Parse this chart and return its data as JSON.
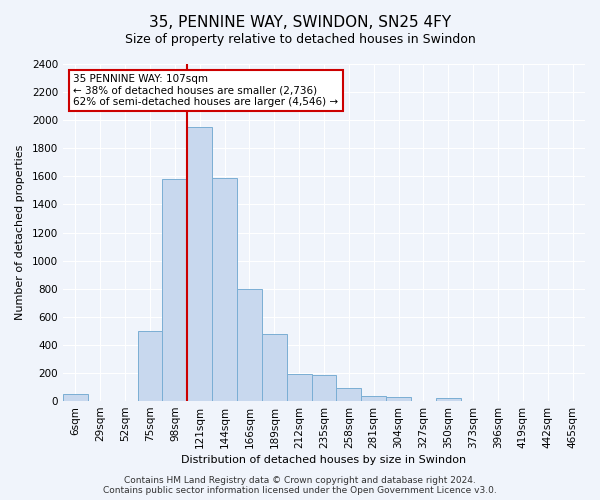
{
  "title": "35, PENNINE WAY, SWINDON, SN25 4FY",
  "subtitle": "Size of property relative to detached houses in Swindon",
  "xlabel": "Distribution of detached houses by size in Swindon",
  "ylabel": "Number of detached properties",
  "bin_labels": [
    "6sqm",
    "29sqm",
    "52sqm",
    "75sqm",
    "98sqm",
    "121sqm",
    "144sqm",
    "166sqm",
    "189sqm",
    "212sqm",
    "235sqm",
    "258sqm",
    "281sqm",
    "304sqm",
    "327sqm",
    "350sqm",
    "373sqm",
    "396sqm",
    "419sqm",
    "442sqm",
    "465sqm"
  ],
  "bar_values": [
    50,
    0,
    0,
    500,
    1580,
    1950,
    1590,
    800,
    480,
    190,
    185,
    90,
    35,
    30,
    0,
    20,
    0,
    0,
    0,
    0,
    0
  ],
  "bar_color": "#c8d8ee",
  "bar_edge_color": "#7aaed4",
  "property_line_x": 4.5,
  "property_label": "35 PENNINE WAY: 107sqm",
  "annotation_line1": "← 38% of detached houses are smaller (2,736)",
  "annotation_line2": "62% of semi-detached houses are larger (4,546) →",
  "line_color": "#cc0000",
  "ylim": [
    0,
    2400
  ],
  "yticks": [
    0,
    200,
    400,
    600,
    800,
    1000,
    1200,
    1400,
    1600,
    1800,
    2000,
    2200,
    2400
  ],
  "footer_line1": "Contains HM Land Registry data © Crown copyright and database right 2024.",
  "footer_line2": "Contains public sector information licensed under the Open Government Licence v3.0.",
  "background_color": "#f0f4fb",
  "grid_color": "#ffffff",
  "title_fontsize": 11,
  "subtitle_fontsize": 9,
  "axis_label_fontsize": 8,
  "tick_fontsize": 7.5,
  "footer_fontsize": 6.5
}
